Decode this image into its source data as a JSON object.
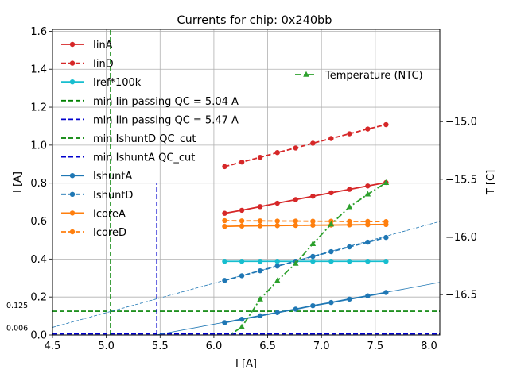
{
  "chart_data": {
    "type": "line",
    "title": "Currents for chip: 0x240bb",
    "xlabel": "I [A]",
    "ylabel": "I [A]",
    "y2label": "T [C]",
    "xlim": [
      4.5,
      8.1
    ],
    "ylim": [
      0,
      1.61
    ],
    "y2lim": [
      -16.85,
      -14.2
    ],
    "xticks": [
      "4.5",
      "5.0",
      "5.5",
      "6.0",
      "6.5",
      "7.0",
      "7.5",
      "8.0"
    ],
    "yticks": [
      "0.0",
      "0.2",
      "0.4",
      "0.6",
      "0.8",
      "1.0",
      "1.2",
      "1.4",
      "1.6"
    ],
    "y2ticks": [
      "−15.0",
      "−15.5",
      "−16.0",
      "−16.5"
    ],
    "grid": true,
    "x": [
      6.1,
      6.26,
      6.43,
      6.59,
      6.76,
      6.92,
      7.09,
      7.26,
      7.43,
      7.6
    ],
    "series": [
      {
        "name": "IinA",
        "color": "#d62728",
        "dash": "solid",
        "values": [
          0.641,
          0.657,
          0.676,
          0.694,
          0.713,
          0.731,
          0.749,
          0.767,
          0.785,
          0.803
        ]
      },
      {
        "name": "IinD",
        "color": "#d62728",
        "dash": "dashed",
        "values": [
          0.887,
          0.911,
          0.936,
          0.961,
          0.985,
          1.01,
          1.035,
          1.06,
          1.085,
          1.108
        ]
      },
      {
        "name": "Iref*100k",
        "color": "#17becf",
        "dash": "solid",
        "values": [
          0.388,
          0.388,
          0.388,
          0.388,
          0.388,
          0.388,
          0.388,
          0.388,
          0.388,
          0.388
        ]
      },
      {
        "name": "IshuntA",
        "color": "#1f77b4",
        "dash": "solid",
        "values": [
          0.065,
          0.083,
          0.101,
          0.118,
          0.136,
          0.154,
          0.171,
          0.189,
          0.206,
          0.224
        ]
      },
      {
        "name": "IshuntD",
        "color": "#1f77b4",
        "dash": "dashed",
        "values": [
          0.287,
          0.312,
          0.338,
          0.363,
          0.388,
          0.414,
          0.439,
          0.464,
          0.489,
          0.514
        ]
      },
      {
        "name": "IcoreA",
        "color": "#ff7f0e",
        "dash": "solid",
        "values": [
          0.572,
          0.574,
          0.575,
          0.576,
          0.577,
          0.578,
          0.579,
          0.58,
          0.581,
          0.582
        ]
      },
      {
        "name": "IcoreD",
        "color": "#ff7f0e",
        "dash": "dashed",
        "values": [
          0.602,
          0.601,
          0.601,
          0.6,
          0.6,
          0.599,
          0.599,
          0.598,
          0.598,
          0.597
        ]
      }
    ],
    "temperature": {
      "name": "Temperature (NTC)",
      "color": "#2ca02c",
      "x": [
        6.26,
        6.43,
        6.59,
        6.76,
        6.92,
        7.09,
        7.26,
        7.43,
        7.6
      ],
      "values": [
        -16.78,
        -16.54,
        -16.38,
        -16.23,
        -16.06,
        -15.89,
        -15.74,
        -15.63,
        -15.53
      ],
      "start": {
        "x": 6.1,
        "y": -16.88
      }
    },
    "vlines": [
      {
        "name": "min Iin passing QC = 5.04 A",
        "x": 5.04,
        "color": "#008000",
        "ymax": 1.61
      },
      {
        "name": "min Iin passing QC = 5.47 A",
        "x": 5.47,
        "color": "#0000cd",
        "ymax": 0.8
      }
    ],
    "hlines": [
      {
        "name": "min IshuntD QC_cut",
        "y": 0.125,
        "label": "0.125",
        "color": "#008000"
      },
      {
        "name": "min IshuntA QC_cut",
        "y": 0.006,
        "label": "0.006",
        "color": "#0000cd"
      }
    ],
    "fit_lines": [
      {
        "name": "IshuntD fit",
        "color": "#1f77b4",
        "dash": "dashed",
        "x": [
          4.5,
          8.1
        ],
        "values": [
          0.04,
          0.598
        ]
      },
      {
        "name": "IshuntA fit",
        "color": "#1f77b4",
        "dash": "solid",
        "x": [
          5.46,
          8.1
        ],
        "values": [
          0.0,
          0.277
        ]
      }
    ],
    "legend_order": [
      "IinA",
      "IinD",
      "Iref*100k",
      "min Iin passing QC = 5.04 A",
      "min Iin passing QC = 5.47 A",
      "min IshuntD QC_cut",
      "min IshuntA QC_cut",
      "IshuntA",
      "IshuntD",
      "IcoreA",
      "IcoreD"
    ],
    "legend_location": "top-left",
    "legend2_location": "upper-right"
  }
}
